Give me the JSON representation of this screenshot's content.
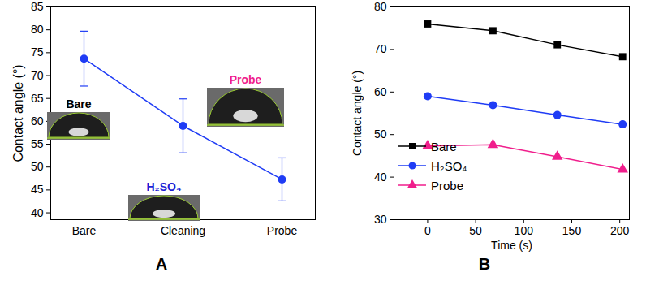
{
  "chart_data": [
    {
      "type": "line",
      "title": "A",
      "categories": [
        "Bare",
        "Cleaning",
        "Probe"
      ],
      "values": [
        73.7,
        59.0,
        47.3
      ],
      "errors": [
        6.0,
        5.9,
        4.7
      ],
      "color": "#1f3cf5",
      "marker": "circle",
      "ylabel": "Contact angle (°)",
      "ylim": [
        38.5,
        85
      ],
      "yticks": [
        40,
        45,
        50,
        55,
        60,
        65,
        70,
        75,
        80,
        85
      ],
      "annotations": [
        {
          "text": "Bare",
          "color": "#000000"
        },
        {
          "text": "H₂SO₄",
          "color": "#1f1fd6"
        },
        {
          "text": "Probe",
          "color": "#f01e8c"
        }
      ]
    },
    {
      "type": "line",
      "title": "B",
      "xlabel": "Time (s)",
      "ylabel": "Contact angle (°)",
      "x": [
        0,
        68,
        135,
        203
      ],
      "xlim": [
        -35,
        210
      ],
      "xticks": [
        0,
        50,
        100,
        150,
        200
      ],
      "ylim": [
        30,
        80
      ],
      "yticks": [
        30,
        40,
        50,
        60,
        70,
        80
      ],
      "legend": "lower left",
      "series": [
        {
          "name": "Bare",
          "color": "#000000",
          "marker": "square",
          "values": [
            76.0,
            74.4,
            71.1,
            68.3
          ]
        },
        {
          "name": "H₂SO₄",
          "color": "#1f3cf5",
          "marker": "circle",
          "values": [
            59.0,
            56.9,
            54.6,
            52.4
          ]
        },
        {
          "name": "Probe",
          "color": "#f01e8c",
          "marker": "triangle",
          "values": [
            47.3,
            47.6,
            44.8,
            41.8
          ]
        }
      ]
    }
  ]
}
